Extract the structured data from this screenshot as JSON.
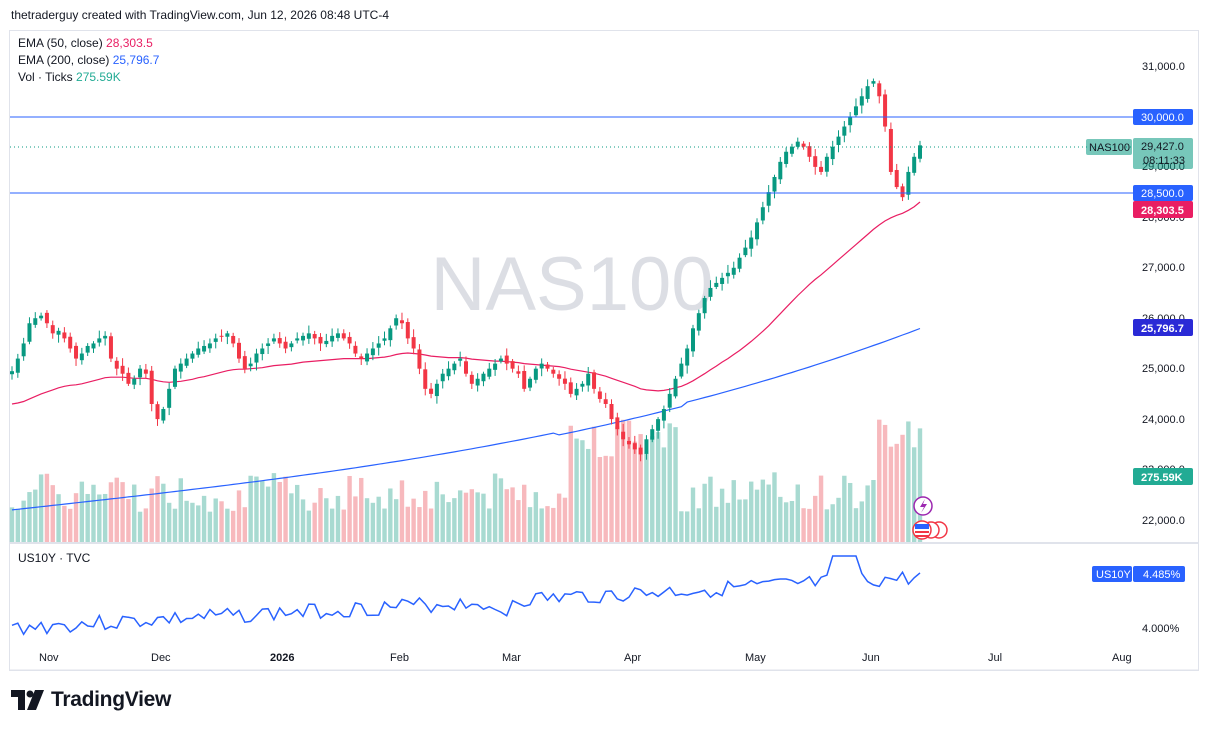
{
  "header": {
    "author_line": "thetraderguy created with TradingView.com, Jun 12, 2026 08:48 UTC-4"
  },
  "legend": {
    "ema50_label": "EMA (50, close)",
    "ema50_value": "28,303.5",
    "ema200_label": "EMA (200, close)",
    "ema200_value": "25,796.7",
    "vol_label": "Vol · Ticks",
    "vol_value": "275.59K"
  },
  "watermark": "NAS100",
  "price_axis": {
    "ticks": [
      "31,000.0",
      "30,000.0",
      "29,000.0",
      "28,000.0",
      "27,000.0",
      "26,000.0",
      "25,000.0",
      "24,000.0",
      "23,000.0",
      "22,000.0"
    ],
    "tick_values": [
      31000,
      30000,
      29000,
      28000,
      27000,
      26000,
      25000,
      24000,
      23000,
      22000
    ]
  },
  "price_labels": {
    "level_30000": "30,000.0",
    "level_28500": "28,500.0",
    "symbol": "NAS100",
    "last_price": "29,427.0",
    "countdown": "08:11:33",
    "ema50": "28,303.5",
    "ema200": "25,796.7",
    "volume": "275.59K"
  },
  "lower_pane": {
    "title": "US10Y · TVC",
    "symbol_label": "US10Y",
    "value_label": "4.485%",
    "axis_tick": "4.000%"
  },
  "time_axis": [
    "Nov",
    "Dec",
    "2026",
    "Feb",
    "Mar",
    "Apr",
    "May",
    "Jun",
    "Jul",
    "Aug"
  ],
  "footer": {
    "brand": "TradingView"
  },
  "colors": {
    "up": "#089981",
    "down": "#f23645",
    "ema50": "#e91e63",
    "ema200": "#2962ff",
    "vol_up": "#a8dad1",
    "vol_down": "#f7b9bd",
    "hline": "#2962ff",
    "us10y": "#2962ff"
  },
  "chart_data": {
    "type": "candlestick",
    "symbol": "NAS100",
    "ylim": [
      21800,
      31300
    ],
    "horizontal_levels": [
      30000,
      28500
    ],
    "last_price": 29427.0,
    "closes": [
      24950,
      25200,
      25500,
      25900,
      26000,
      26050,
      25900,
      25700,
      25750,
      25600,
      25400,
      25200,
      25300,
      25450,
      25500,
      25600,
      25650,
      25200,
      25000,
      24900,
      24700,
      24800,
      25000,
      24900,
      24300,
      24000,
      24200,
      24600,
      25000,
      25100,
      25200,
      25300,
      25400,
      25450,
      25500,
      25600,
      25650,
      25700,
      25500,
      25200,
      25000,
      25100,
      25300,
      25400,
      25500,
      25600,
      25500,
      25400,
      25500,
      25600,
      25650,
      25700,
      25600,
      25500,
      25550,
      25650,
      25700,
      25600,
      25500,
      25300,
      25200,
      25300,
      25400,
      25500,
      25600,
      25800,
      26000,
      25900,
      25600,
      25400,
      25000,
      24600,
      24500,
      24700,
      24900,
      25000,
      25100,
      25200,
      24900,
      24700,
      24800,
      24900,
      25000,
      25100,
      25200,
      25100,
      25000,
      24900,
      24600,
      24800,
      25000,
      25100,
      25000,
      24900,
      24800,
      24700,
      24500,
      24600,
      24700,
      24900,
      24600,
      24400,
      24300,
      24000,
      23800,
      23600,
      23500,
      23400,
      23300,
      23600,
      23800,
      24000,
      24200,
      24500,
      24800,
      25100,
      25400,
      25800,
      26100,
      26400,
      26600,
      26700,
      26800,
      26900,
      27000,
      27200,
      27400,
      27600,
      27900,
      28200,
      28500,
      28800,
      29100,
      29300,
      29400,
      29500,
      29400,
      29200,
      29000,
      28900,
      29200,
      29400,
      29600,
      29800,
      30000,
      30200,
      30400,
      30600,
      30700,
      30400,
      29800,
      28900,
      28600,
      28400,
      28900,
      29200,
      29427
    ],
    "ema50": [
      24300,
      24320,
      24350,
      24400,
      24450,
      24500,
      24540,
      24580,
      24620,
      24650,
      24670,
      24680,
      24700,
      24730,
      24760,
      24790,
      24820,
      24830,
      24830,
      24830,
      24820,
      24810,
      24810,
      24810,
      24790,
      24760,
      24740,
      24730,
      24740,
      24750,
      24770,
      24790,
      24820,
      24840,
      24870,
      24900,
      24930,
      24960,
      24980,
      24990,
      24990,
      25000,
      25010,
      25020,
      25040,
      25060,
      25070,
      25080,
      25090,
      25110,
      25130,
      25140,
      25150,
      25160,
      25170,
      25180,
      25190,
      25200,
      25200,
      25200,
      25200,
      25200,
      25210,
      25220,
      25230,
      25250,
      25280,
      25300,
      25310,
      25300,
      25290,
      25270,
      25250,
      25240,
      25230,
      25220,
      25220,
      25220,
      25210,
      25190,
      25180,
      25170,
      25160,
      25150,
      25150,
      25140,
      25130,
      25120,
      25100,
      25090,
      25080,
      25070,
      25060,
      25050,
      25040,
      25020,
      24990,
      24970,
      24950,
      24930,
      24910,
      24880,
      24850,
      24810,
      24770,
      24730,
      24690,
      24650,
      24600,
      24580,
      24570,
      24560,
      24570,
      24590,
      24620,
      24650,
      24700,
      24760,
      24830,
      24900,
      24980,
      25050,
      25130,
      25200,
      25280,
      25360,
      25450,
      25540,
      25640,
      25740,
      25850,
      25970,
      26090,
      26210,
      26330,
      26450,
      26560,
      26670,
      26770,
      26860,
      26960,
      27060,
      27160,
      27260,
      27360,
      27460,
      27560,
      27660,
      27760,
      27850,
      27930,
      27990,
      28040,
      28080,
      28140,
      28210,
      28303.5
    ],
    "ema200_start": 22200,
    "ema200_end": 25796.7,
    "volume_last": "275.59K",
    "us10y_last": 4.485
  }
}
